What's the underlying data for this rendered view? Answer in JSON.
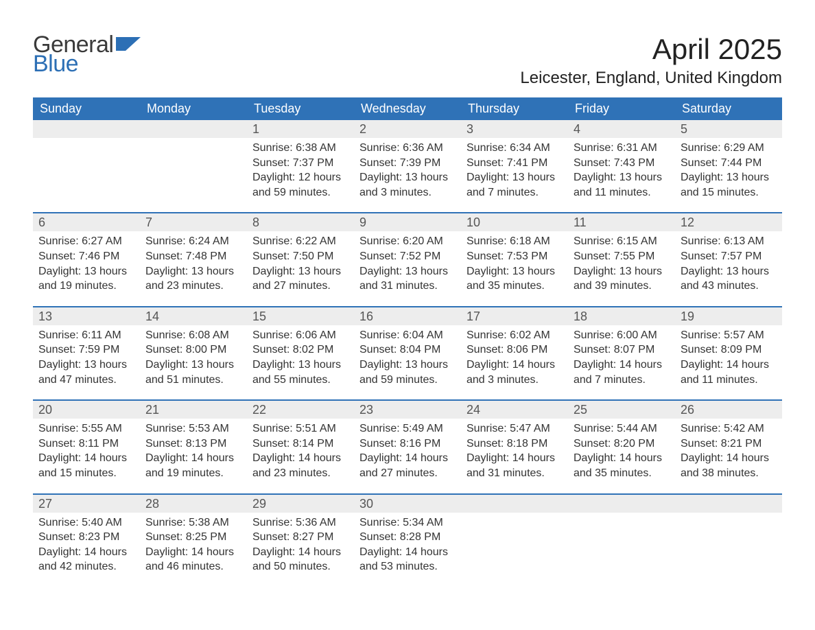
{
  "branding": {
    "logo_top": "General",
    "logo_bottom": "Blue",
    "logo_top_color": "#3a3a3a",
    "logo_bottom_color": "#2c6fb5",
    "icon_color": "#2c6fb5"
  },
  "header": {
    "month_title": "April 2025",
    "location": "Leicester, England, United Kingdom"
  },
  "colors": {
    "header_bg": "#2f72b7",
    "header_text": "#ffffff",
    "week_divider": "#2f72b7",
    "daynum_bg": "#ededed",
    "daynum_text": "#555555",
    "body_text": "#333333",
    "page_bg": "#ffffff"
  },
  "weekdays": [
    "Sunday",
    "Monday",
    "Tuesday",
    "Wednesday",
    "Thursday",
    "Friday",
    "Saturday"
  ],
  "weeks": [
    [
      {
        "num": "",
        "l1": "",
        "l2": "",
        "l3": "",
        "l4": ""
      },
      {
        "num": "",
        "l1": "",
        "l2": "",
        "l3": "",
        "l4": ""
      },
      {
        "num": "1",
        "l1": "Sunrise: 6:38 AM",
        "l2": "Sunset: 7:37 PM",
        "l3": "Daylight: 12 hours",
        "l4": "and 59 minutes."
      },
      {
        "num": "2",
        "l1": "Sunrise: 6:36 AM",
        "l2": "Sunset: 7:39 PM",
        "l3": "Daylight: 13 hours",
        "l4": "and 3 minutes."
      },
      {
        "num": "3",
        "l1": "Sunrise: 6:34 AM",
        "l2": "Sunset: 7:41 PM",
        "l3": "Daylight: 13 hours",
        "l4": "and 7 minutes."
      },
      {
        "num": "4",
        "l1": "Sunrise: 6:31 AM",
        "l2": "Sunset: 7:43 PM",
        "l3": "Daylight: 13 hours",
        "l4": "and 11 minutes."
      },
      {
        "num": "5",
        "l1": "Sunrise: 6:29 AM",
        "l2": "Sunset: 7:44 PM",
        "l3": "Daylight: 13 hours",
        "l4": "and 15 minutes."
      }
    ],
    [
      {
        "num": "6",
        "l1": "Sunrise: 6:27 AM",
        "l2": "Sunset: 7:46 PM",
        "l3": "Daylight: 13 hours",
        "l4": "and 19 minutes."
      },
      {
        "num": "7",
        "l1": "Sunrise: 6:24 AM",
        "l2": "Sunset: 7:48 PM",
        "l3": "Daylight: 13 hours",
        "l4": "and 23 minutes."
      },
      {
        "num": "8",
        "l1": "Sunrise: 6:22 AM",
        "l2": "Sunset: 7:50 PM",
        "l3": "Daylight: 13 hours",
        "l4": "and 27 minutes."
      },
      {
        "num": "9",
        "l1": "Sunrise: 6:20 AM",
        "l2": "Sunset: 7:52 PM",
        "l3": "Daylight: 13 hours",
        "l4": "and 31 minutes."
      },
      {
        "num": "10",
        "l1": "Sunrise: 6:18 AM",
        "l2": "Sunset: 7:53 PM",
        "l3": "Daylight: 13 hours",
        "l4": "and 35 minutes."
      },
      {
        "num": "11",
        "l1": "Sunrise: 6:15 AM",
        "l2": "Sunset: 7:55 PM",
        "l3": "Daylight: 13 hours",
        "l4": "and 39 minutes."
      },
      {
        "num": "12",
        "l1": "Sunrise: 6:13 AM",
        "l2": "Sunset: 7:57 PM",
        "l3": "Daylight: 13 hours",
        "l4": "and 43 minutes."
      }
    ],
    [
      {
        "num": "13",
        "l1": "Sunrise: 6:11 AM",
        "l2": "Sunset: 7:59 PM",
        "l3": "Daylight: 13 hours",
        "l4": "and 47 minutes."
      },
      {
        "num": "14",
        "l1": "Sunrise: 6:08 AM",
        "l2": "Sunset: 8:00 PM",
        "l3": "Daylight: 13 hours",
        "l4": "and 51 minutes."
      },
      {
        "num": "15",
        "l1": "Sunrise: 6:06 AM",
        "l2": "Sunset: 8:02 PM",
        "l3": "Daylight: 13 hours",
        "l4": "and 55 minutes."
      },
      {
        "num": "16",
        "l1": "Sunrise: 6:04 AM",
        "l2": "Sunset: 8:04 PM",
        "l3": "Daylight: 13 hours",
        "l4": "and 59 minutes."
      },
      {
        "num": "17",
        "l1": "Sunrise: 6:02 AM",
        "l2": "Sunset: 8:06 PM",
        "l3": "Daylight: 14 hours",
        "l4": "and 3 minutes."
      },
      {
        "num": "18",
        "l1": "Sunrise: 6:00 AM",
        "l2": "Sunset: 8:07 PM",
        "l3": "Daylight: 14 hours",
        "l4": "and 7 minutes."
      },
      {
        "num": "19",
        "l1": "Sunrise: 5:57 AM",
        "l2": "Sunset: 8:09 PM",
        "l3": "Daylight: 14 hours",
        "l4": "and 11 minutes."
      }
    ],
    [
      {
        "num": "20",
        "l1": "Sunrise: 5:55 AM",
        "l2": "Sunset: 8:11 PM",
        "l3": "Daylight: 14 hours",
        "l4": "and 15 minutes."
      },
      {
        "num": "21",
        "l1": "Sunrise: 5:53 AM",
        "l2": "Sunset: 8:13 PM",
        "l3": "Daylight: 14 hours",
        "l4": "and 19 minutes."
      },
      {
        "num": "22",
        "l1": "Sunrise: 5:51 AM",
        "l2": "Sunset: 8:14 PM",
        "l3": "Daylight: 14 hours",
        "l4": "and 23 minutes."
      },
      {
        "num": "23",
        "l1": "Sunrise: 5:49 AM",
        "l2": "Sunset: 8:16 PM",
        "l3": "Daylight: 14 hours",
        "l4": "and 27 minutes."
      },
      {
        "num": "24",
        "l1": "Sunrise: 5:47 AM",
        "l2": "Sunset: 8:18 PM",
        "l3": "Daylight: 14 hours",
        "l4": "and 31 minutes."
      },
      {
        "num": "25",
        "l1": "Sunrise: 5:44 AM",
        "l2": "Sunset: 8:20 PM",
        "l3": "Daylight: 14 hours",
        "l4": "and 35 minutes."
      },
      {
        "num": "26",
        "l1": "Sunrise: 5:42 AM",
        "l2": "Sunset: 8:21 PM",
        "l3": "Daylight: 14 hours",
        "l4": "and 38 minutes."
      }
    ],
    [
      {
        "num": "27",
        "l1": "Sunrise: 5:40 AM",
        "l2": "Sunset: 8:23 PM",
        "l3": "Daylight: 14 hours",
        "l4": "and 42 minutes."
      },
      {
        "num": "28",
        "l1": "Sunrise: 5:38 AM",
        "l2": "Sunset: 8:25 PM",
        "l3": "Daylight: 14 hours",
        "l4": "and 46 minutes."
      },
      {
        "num": "29",
        "l1": "Sunrise: 5:36 AM",
        "l2": "Sunset: 8:27 PM",
        "l3": "Daylight: 14 hours",
        "l4": "and 50 minutes."
      },
      {
        "num": "30",
        "l1": "Sunrise: 5:34 AM",
        "l2": "Sunset: 8:28 PM",
        "l3": "Daylight: 14 hours",
        "l4": "and 53 minutes."
      },
      {
        "num": "",
        "l1": "",
        "l2": "",
        "l3": "",
        "l4": ""
      },
      {
        "num": "",
        "l1": "",
        "l2": "",
        "l3": "",
        "l4": ""
      },
      {
        "num": "",
        "l1": "",
        "l2": "",
        "l3": "",
        "l4": ""
      }
    ]
  ]
}
